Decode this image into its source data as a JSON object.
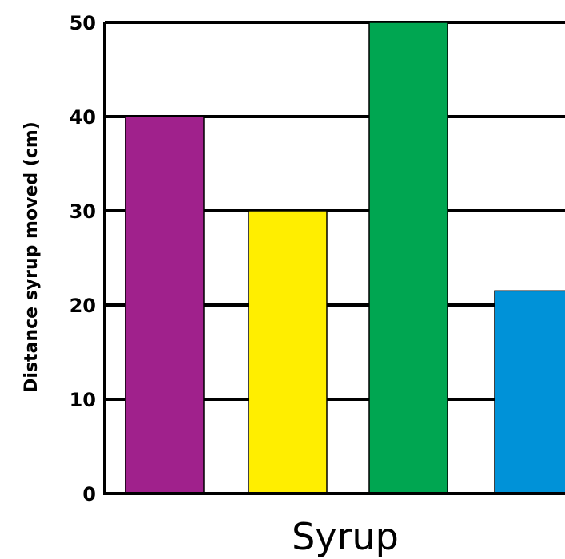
{
  "chart_data": {
    "type": "bar",
    "title": "",
    "xlabel": "Syrup",
    "ylabel": "Distance syrup moved (cm)",
    "ylim": [
      0,
      50
    ],
    "yticks": [
      0,
      10,
      20,
      30,
      40,
      50
    ],
    "grid": true,
    "legend": "none",
    "categories": [
      "",
      "",
      "",
      ""
    ],
    "values": [
      40,
      30,
      50,
      21.5
    ],
    "colors": [
      "#a0218c",
      "#ffee00",
      "#00a651",
      "#0092d8"
    ]
  }
}
